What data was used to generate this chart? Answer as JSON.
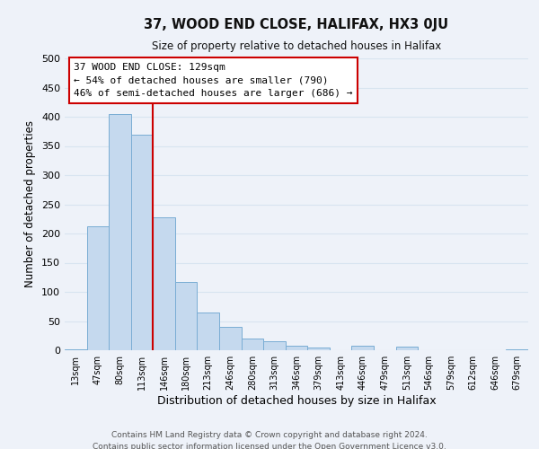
{
  "title": "37, WOOD END CLOSE, HALIFAX, HX3 0JU",
  "subtitle": "Size of property relative to detached houses in Halifax",
  "xlabel": "Distribution of detached houses by size in Halifax",
  "ylabel": "Number of detached properties",
  "bar_color": "#c5d9ee",
  "bar_edge_color": "#7aadd4",
  "background_color": "#eef2f9",
  "grid_color": "#d8e4f0",
  "categories": [
    "13sqm",
    "47sqm",
    "80sqm",
    "113sqm",
    "146sqm",
    "180sqm",
    "213sqm",
    "246sqm",
    "280sqm",
    "313sqm",
    "346sqm",
    "379sqm",
    "413sqm",
    "446sqm",
    "479sqm",
    "513sqm",
    "546sqm",
    "579sqm",
    "612sqm",
    "646sqm",
    "679sqm"
  ],
  "values": [
    2,
    212,
    405,
    370,
    228,
    117,
    65,
    40,
    20,
    15,
    8,
    5,
    0,
    8,
    0,
    6,
    0,
    0,
    0,
    0,
    2
  ],
  "red_line_x": 3.5,
  "red_line_color": "#cc0000",
  "annotation_line1": "37 WOOD END CLOSE: 129sqm",
  "annotation_line2": "← 54% of detached houses are smaller (790)",
  "annotation_line3": "46% of semi-detached houses are larger (686) →",
  "annotation_box_edge": "#cc0000",
  "ylim": [
    0,
    500
  ],
  "yticks": [
    0,
    50,
    100,
    150,
    200,
    250,
    300,
    350,
    400,
    450,
    500
  ],
  "footer1": "Contains HM Land Registry data © Crown copyright and database right 2024.",
  "footer2": "Contains public sector information licensed under the Open Government Licence v3.0."
}
